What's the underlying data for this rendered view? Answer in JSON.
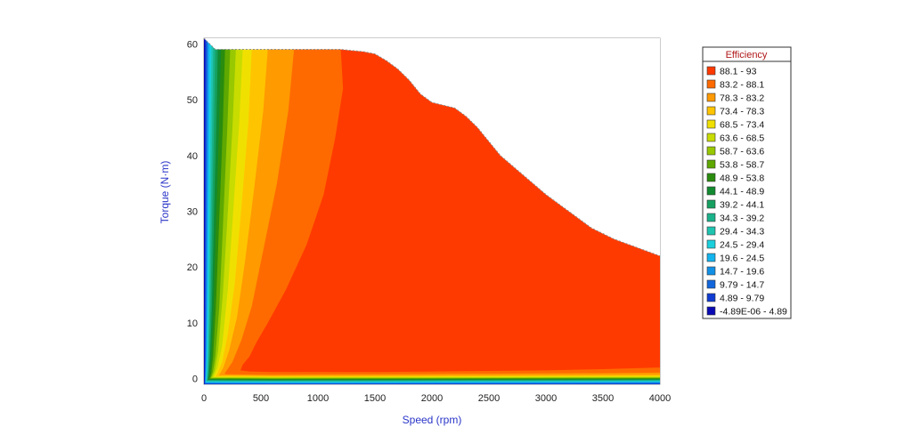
{
  "chart_data": {
    "type": "heatmap",
    "title": "",
    "xlabel": "Speed (rpm)",
    "ylabel": "Torque (N·m)",
    "xlim": [
      0,
      4000
    ],
    "ylim": [
      -1,
      61
    ],
    "x_ticks": [
      "0",
      "500",
      "1000",
      "1500",
      "2000",
      "2500",
      "3000",
      "3500",
      "4000"
    ],
    "y_ticks": [
      "0",
      "10",
      "20",
      "30",
      "40",
      "50",
      "60"
    ],
    "grid": true,
    "legend_placement": "right",
    "legend": {
      "title": "Efficiency",
      "entries": [
        {
          "label": "88.1 - 93",
          "color": "#ff3a00"
        },
        {
          "label": "83.2 - 88.1",
          "color": "#ff6a00"
        },
        {
          "label": "78.3 - 83.2",
          "color": "#ff9a00"
        },
        {
          "label": "73.4 - 78.3",
          "color": "#ffc400"
        },
        {
          "label": "68.5 - 73.4",
          "color": "#f0e000"
        },
        {
          "label": "63.6 - 68.5",
          "color": "#c8dc00"
        },
        {
          "label": "58.7 - 63.6",
          "color": "#98c800"
        },
        {
          "label": "53.8 - 58.7",
          "color": "#5ea800"
        },
        {
          "label": "48.9 - 53.8",
          "color": "#2a8c0e"
        },
        {
          "label": "44.1 - 48.9",
          "color": "#128a30"
        },
        {
          "label": "39.2 - 44.1",
          "color": "#16a060"
        },
        {
          "label": "34.3 - 39.2",
          "color": "#1ab28a"
        },
        {
          "label": "29.4 - 34.3",
          "color": "#1ec4b0"
        },
        {
          "label": "24.5 - 29.4",
          "color": "#1ad0dc"
        },
        {
          "label": "19.6 - 24.5",
          "color": "#12b4ee"
        },
        {
          "label": "14.7 - 19.6",
          "color": "#1290e6"
        },
        {
          "label": "9.79 - 14.7",
          "color": "#1266dc"
        },
        {
          "label": "4.89 - 9.79",
          "color": "#103cd2"
        },
        {
          "label": "-4.89E-06 - 4.89",
          "color": "#0a0ab4"
        }
      ]
    },
    "torque_envelope": {
      "speed": [
        0,
        100,
        1200,
        1300,
        1400,
        1500,
        1600,
        1700,
        1800,
        1900,
        2000,
        2100,
        2200,
        2300,
        2400,
        2500,
        2600,
        2800,
        3000,
        3200,
        3400,
        3600,
        3800,
        4000
      ],
      "torque": [
        61,
        59,
        59,
        58.8,
        58.6,
        58.2,
        57,
        55.5,
        53.5,
        51,
        49.5,
        49,
        48.5,
        47,
        45,
        42.5,
        40,
        36.5,
        33,
        30,
        27,
        25,
        23.5,
        22
      ]
    },
    "contours": [
      {
        "band": "83.2 - 88.1",
        "speed": [
          1200,
          1220,
          1150,
          1050,
          900,
          720,
          560,
          460,
          400,
          340,
          320,
          400,
          600,
          1000,
          1500,
          2000,
          2500,
          3000,
          3500,
          4000
        ],
        "torque": [
          59,
          52,
          43,
          33,
          24,
          16,
          10,
          6.5,
          4,
          2.5,
          1.5,
          1.3,
          1.2,
          1.2,
          1.2,
          1.3,
          1.4,
          1.5,
          1.7,
          2
        ]
      },
      {
        "band": "78.3 - 83.2",
        "speed": [
          790,
          740,
          640,
          520,
          420,
          330,
          250,
          200,
          180,
          200,
          600,
          1500,
          2500,
          3500,
          4000
        ],
        "torque": [
          59,
          48,
          35,
          23,
          13,
          7,
          3,
          1.5,
          0.9,
          0.8,
          0.7,
          0.8,
          0.9,
          1,
          1.1
        ]
      },
      {
        "band": "73.4 - 78.3",
        "speed": [
          560,
          520,
          440,
          360,
          290,
          220,
          170,
          140,
          130,
          600,
          2000,
          4000
        ],
        "torque": [
          59,
          48,
          34,
          21,
          11,
          5,
          2,
          0.9,
          0.6,
          0.5,
          0.55,
          0.7
        ]
      },
      {
        "band": "68.5 - 73.4",
        "speed": [
          420,
          390,
          330,
          270,
          210,
          160,
          125,
          110,
          100,
          600,
          4000
        ],
        "torque": [
          59,
          46,
          31,
          17,
          8,
          3,
          1.3,
          0.6,
          0.4,
          0.35,
          0.5
        ]
      },
      {
        "band": "63.6 - 68.5",
        "speed": [
          340,
          310,
          260,
          210,
          160,
          120,
          95,
          85,
          600,
          4000
        ],
        "torque": [
          59,
          46,
          31,
          16,
          6,
          2,
          0.8,
          0.3,
          0.25,
          0.35
        ]
      },
      {
        "band": "58.7 - 63.6",
        "speed": [
          280,
          250,
          210,
          165,
          125,
          95,
          78,
          70,
          600,
          4000
        ],
        "torque": [
          59,
          45,
          30,
          15,
          5,
          1.5,
          0.6,
          0.2,
          0.15,
          0.25
        ]
      },
      {
        "band": "53.8 - 58.7",
        "speed": [
          230,
          205,
          170,
          135,
          100,
          78,
          65,
          58,
          600,
          4000
        ],
        "torque": [
          59,
          45,
          29,
          13,
          4,
          1.2,
          0.4,
          0.1,
          0.05,
          0.15
        ]
      },
      {
        "band": "48.9 - 53.8",
        "speed": [
          185,
          165,
          135,
          105,
          80,
          64,
          55,
          48,
          600,
          4000
        ],
        "torque": [
          59,
          45,
          29,
          13,
          4,
          1,
          0.3,
          0,
          -0.05,
          0.05
        ]
      },
      {
        "band": "44.1 - 48.9",
        "speed": [
          150,
          132,
          108,
          85,
          65,
          52,
          45,
          40,
          600,
          4000
        ],
        "torque": [
          59,
          45,
          29,
          13,
          4,
          1,
          0.2,
          -0.1,
          -0.15,
          -0.05
        ]
      },
      {
        "band": "39.2 - 44.1",
        "speed": [
          122,
          108,
          88,
          70,
          54,
          44,
          38,
          34,
          600,
          4000
        ],
        "torque": [
          59.3,
          45,
          29,
          13,
          4,
          1,
          0.1,
          -0.2,
          -0.25,
          -0.15
        ]
      },
      {
        "band": "34.3 - 39.2",
        "speed": [
          100,
          88,
          72,
          58,
          45,
          37,
          32,
          28,
          600,
          4000
        ],
        "torque": [
          59.6,
          45,
          29,
          13,
          4,
          1,
          0,
          -0.3,
          -0.35,
          -0.25
        ]
      },
      {
        "band": "29.4 - 34.3",
        "speed": [
          82,
          72,
          60,
          48,
          38,
          31,
          27,
          24,
          600,
          4000
        ],
        "torque": [
          59.9,
          45,
          29,
          13,
          4,
          1,
          -0.1,
          -0.4,
          -0.45,
          -0.35
        ]
      },
      {
        "band": "24.5 - 29.4",
        "speed": [
          66,
          58,
          49,
          40,
          32,
          26,
          22,
          20,
          600,
          4000
        ],
        "torque": [
          60.2,
          45,
          29,
          13,
          4,
          1,
          -0.2,
          -0.5,
          -0.55,
          -0.45
        ]
      },
      {
        "band": "19.6 - 24.5",
        "speed": [
          52,
          46,
          39,
          32,
          26,
          21,
          18,
          16,
          600,
          4000
        ],
        "torque": [
          60.5,
          45,
          29,
          13,
          4,
          1,
          -0.3,
          -0.6,
          -0.65,
          -0.55
        ]
      },
      {
        "band": "14.7 - 19.6",
        "speed": [
          40,
          36,
          31,
          26,
          21,
          17,
          14,
          12,
          600,
          4000
        ],
        "torque": [
          60.7,
          45,
          29,
          13,
          4,
          1,
          -0.4,
          -0.7,
          -0.75,
          -0.65
        ]
      },
      {
        "band": "9.79 - 14.7",
        "speed": [
          30,
          27,
          23,
          19,
          16,
          13,
          11,
          9,
          600,
          4000
        ],
        "torque": [
          60.9,
          45,
          29,
          13,
          4,
          1,
          -0.5,
          -0.8,
          -0.85,
          -0.75
        ]
      },
      {
        "band": "4.89 - 9.79",
        "speed": [
          20,
          18,
          15,
          13,
          11,
          9,
          7,
          6,
          600,
          4000
        ],
        "torque": [
          61,
          45,
          29,
          13,
          4,
          1,
          -0.6,
          -0.9,
          -0.95,
          -0.9
        ]
      },
      {
        "band": "-4.89E-06 - 4.89",
        "speed": [
          10,
          9,
          8,
          7,
          6,
          5,
          4,
          3,
          600,
          4000
        ],
        "torque": [
          61,
          45,
          29,
          13,
          4,
          1,
          -0.7,
          -1,
          -1,
          -1
        ]
      }
    ]
  }
}
